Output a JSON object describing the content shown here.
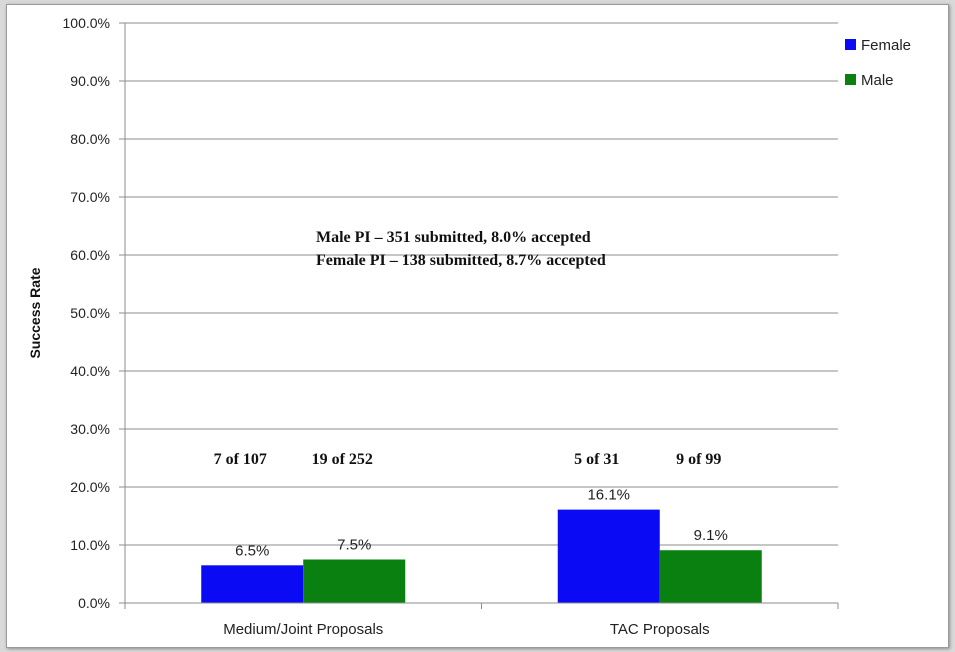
{
  "chart_data": {
    "type": "bar",
    "title": "",
    "xlabel": "",
    "ylabel": "Success Rate",
    "ylim": [
      0,
      100
    ],
    "yticks": [
      "0.0%",
      "10.0%",
      "20.0%",
      "30.0%",
      "40.0%",
      "50.0%",
      "60.0%",
      "70.0%",
      "80.0%",
      "90.0%",
      "100.0%"
    ],
    "categories": [
      "Medium/Joint Proposals",
      "TAC Proposals"
    ],
    "series": [
      {
        "name": "Female",
        "color": "#0a0af5",
        "values": [
          6.5,
          16.1
        ],
        "labels": [
          "6.5%",
          "16.1%"
        ],
        "counts": [
          "7 of 107",
          "5 of 31"
        ]
      },
      {
        "name": "Male",
        "color": "#0a8010",
        "values": [
          7.5,
          9.1
        ],
        "labels": [
          "7.5%",
          "9.1%"
        ],
        "counts": [
          "19 of 252",
          "9 of 99"
        ]
      }
    ],
    "annotations": [
      "Male PI – 351 submitted, 8.0% accepted",
      "Female PI – 138 submitted, 8.7% accepted"
    ],
    "grid": true,
    "legend": "top-right"
  }
}
